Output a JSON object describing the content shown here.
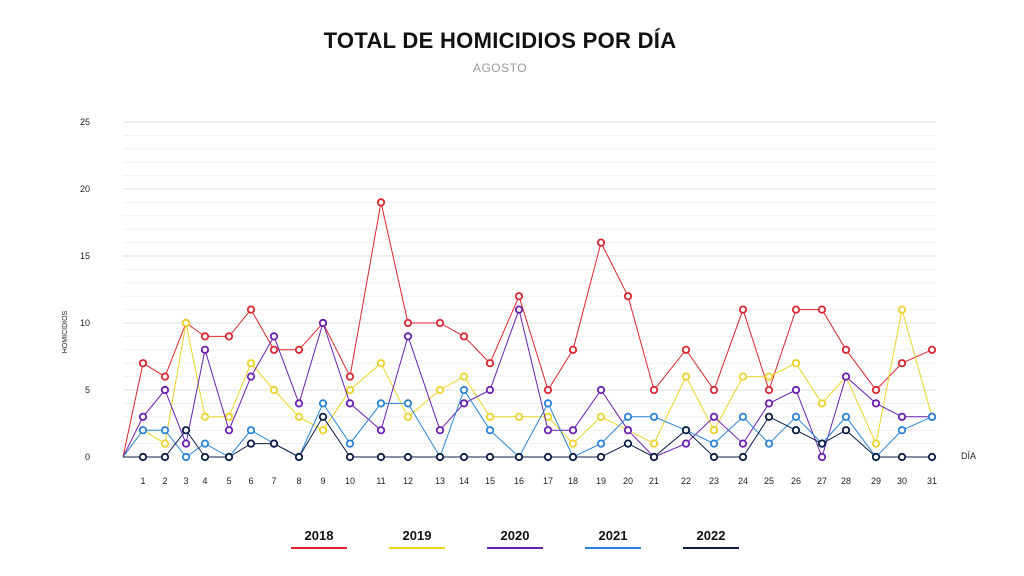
{
  "title": "TOTAL DE HOMICIDIOS POR DÍA",
  "subtitle": "AGOSTO",
  "chart_data": {
    "type": "line",
    "title": "TOTAL DE HOMICIDIOS POR DÍA",
    "subtitle": "AGOSTO",
    "xlabel": "DÍA",
    "ylabel": "HOMICIDIOS",
    "ylim": [
      0,
      25
    ],
    "yticks": [
      "0",
      "5",
      "10",
      "15",
      "20",
      "25"
    ],
    "x": [
      1,
      2,
      3,
      4,
      5,
      6,
      7,
      8,
      9,
      10,
      11,
      12,
      13,
      14,
      15,
      16,
      17,
      18,
      19,
      20,
      21,
      22,
      23,
      24,
      25,
      26,
      27,
      28,
      29,
      30,
      31
    ],
    "xtick_labels": [
      "1",
      "2",
      "3",
      "4",
      "5",
      "6",
      "7",
      "8",
      "9",
      "10",
      "11",
      "12",
      "13",
      "14",
      "15",
      "16",
      "17",
      "18",
      "19",
      "20",
      "21",
      "22",
      "23",
      "24",
      "25",
      "26",
      "27",
      "28",
      "29",
      "30",
      "31"
    ],
    "grid": true,
    "legend_position": "bottom",
    "series": [
      {
        "name": "2018",
        "color": "#d8262e",
        "values": [
          7,
          6,
          10,
          9,
          9,
          11,
          8,
          8,
          10,
          6,
          19,
          10,
          10,
          9,
          7,
          12,
          5,
          8,
          16,
          12,
          5,
          8,
          5,
          11,
          5,
          11,
          11,
          8,
          5,
          7,
          8
        ]
      },
      {
        "name": "2019",
        "color": "#ecd32a",
        "values": [
          2,
          1,
          10,
          3,
          3,
          7,
          5,
          3,
          2,
          5,
          7,
          3,
          5,
          6,
          3,
          3,
          3,
          1,
          3,
          2,
          1,
          6,
          2,
          6,
          6,
          7,
          4,
          6,
          1,
          11,
          3
        ]
      },
      {
        "name": "2020",
        "color": "#6a1fb0",
        "values": [
          3,
          5,
          1,
          8,
          2,
          6,
          9,
          4,
          10,
          4,
          2,
          9,
          2,
          4,
          5,
          11,
          2,
          2,
          5,
          2,
          0,
          1,
          3,
          1,
          4,
          5,
          0,
          6,
          4,
          3,
          3
        ]
      },
      {
        "name": "2021",
        "color": "#2a83d6",
        "values": [
          2,
          2,
          0,
          1,
          0,
          2,
          1,
          0,
          4,
          1,
          4,
          4,
          0,
          5,
          2,
          0,
          4,
          0,
          1,
          3,
          3,
          2,
          1,
          3,
          1,
          3,
          1,
          3,
          0,
          2,
          3
        ]
      },
      {
        "name": "2022",
        "color": "#0b1d45",
        "values": [
          0,
          0,
          2,
          0,
          0,
          1,
          1,
          0,
          3,
          0,
          0,
          0,
          0,
          0,
          0,
          0,
          0,
          0,
          0,
          1,
          0,
          2,
          0,
          0,
          3,
          2,
          1,
          2,
          0,
          0,
          0
        ]
      }
    ]
  }
}
